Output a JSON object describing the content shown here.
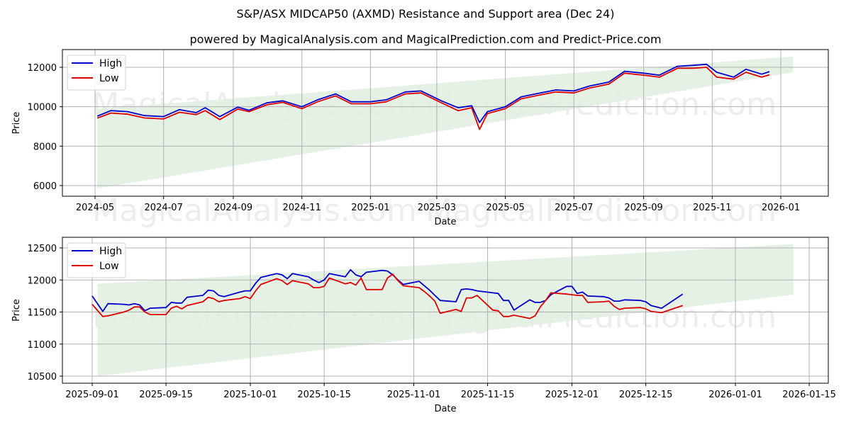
{
  "header": {
    "title": "S&P/ASX MIDCAP50 (AXMD) Resistance and Support area (Dec 24)",
    "subtitle": "powered by MagicalAnalysis.com and MagicalPrediction.com and Predict-Price.com"
  },
  "watermarks": [
    "MagicalAnalysis.com",
    "MagicalPrediction.com"
  ],
  "colors": {
    "high": "#0000cc",
    "low": "#dd0000",
    "band": "#e2efe2",
    "grid": "#b0b0b0"
  },
  "chart_data": [
    {
      "type": "line",
      "title": "S&P/ASX MIDCAP50 (AXMD) Resistance and Support area (Dec 24)",
      "xlabel": "Date",
      "ylabel": "Price",
      "xticks": [
        "2024-05",
        "2024-07",
        "2024-09",
        "2024-11",
        "2025-01",
        "2025-03",
        "2025-05",
        "2025-07",
        "2025-09",
        "2025-11",
        "2026-01"
      ],
      "yticks": [
        6000,
        8000,
        10000,
        12000
      ],
      "ylim": [
        5450,
        12900
      ],
      "grid": true,
      "legend": {
        "position": "upper left",
        "entries": [
          "High",
          "Low"
        ]
      },
      "x": [
        "2024-05-03",
        "2024-05-15",
        "2024-05-30",
        "2024-06-14",
        "2024-07-01",
        "2024-07-15",
        "2024-07-30",
        "2024-08-07",
        "2024-08-20",
        "2024-09-05",
        "2024-09-15",
        "2024-10-01",
        "2024-10-15",
        "2024-11-01",
        "2024-11-15",
        "2024-12-01",
        "2024-12-15",
        "2025-01-01",
        "2025-01-15",
        "2025-02-01",
        "2025-02-15",
        "2025-03-05",
        "2025-03-20",
        "2025-04-01",
        "2025-04-08",
        "2025-04-15",
        "2025-05-01",
        "2025-05-15",
        "2025-06-01",
        "2025-06-15",
        "2025-07-01",
        "2025-07-15",
        "2025-08-01",
        "2025-08-15",
        "2025-09-01",
        "2025-09-15",
        "2025-10-01",
        "2025-10-15",
        "2025-10-27",
        "2025-11-05",
        "2025-11-20",
        "2025-12-01",
        "2025-12-15",
        "2025-12-22"
      ],
      "series": [
        {
          "name": "High",
          "values": [
            9520,
            9800,
            9750,
            9550,
            9500,
            9850,
            9700,
            9950,
            9500,
            9980,
            9820,
            10200,
            10300,
            10000,
            10350,
            10650,
            10250,
            10250,
            10350,
            10750,
            10800,
            10300,
            9950,
            10050,
            9200,
            9750,
            10000,
            10500,
            10700,
            10850,
            10800,
            11050,
            11250,
            11800,
            11700,
            11600,
            12050,
            12100,
            12150,
            11750,
            11500,
            11900,
            11650,
            11780
          ]
        },
        {
          "name": "Low",
          "values": [
            9420,
            9680,
            9620,
            9430,
            9380,
            9720,
            9600,
            9800,
            9350,
            9880,
            9750,
            10100,
            10220,
            9900,
            10250,
            10550,
            10150,
            10150,
            10250,
            10650,
            10700,
            10200,
            9800,
            9950,
            8850,
            9650,
            9900,
            10400,
            10600,
            10750,
            10700,
            10950,
            11150,
            11700,
            11600,
            11500,
            11950,
            11950,
            12000,
            11500,
            11400,
            11750,
            11500,
            11620
          ]
        }
      ],
      "band": {
        "x_start": "2024-05-03",
        "x_end": "2026-01-12",
        "upper_start": 9900,
        "upper_end": 12550,
        "lower_start": 5850,
        "lower_end": 11750
      }
    },
    {
      "type": "line",
      "xlabel": "Date",
      "ylabel": "Price",
      "xticks": [
        "2025-09-01",
        "2025-09-15",
        "2025-10-01",
        "2025-10-15",
        "2025-11-01",
        "2025-11-15",
        "2025-12-01",
        "2025-12-15",
        "2026-01-01",
        "2026-01-15"
      ],
      "yticks": [
        10500,
        11000,
        11500,
        12000,
        12500
      ],
      "ylim": [
        10375,
        12665
      ],
      "grid": true,
      "legend": {
        "position": "upper left",
        "entries": [
          "High",
          "Low"
        ]
      },
      "x": [
        "2025-09-01",
        "2025-09-03",
        "2025-09-04",
        "2025-09-07",
        "2025-09-08",
        "2025-09-09",
        "2025-09-10",
        "2025-09-11",
        "2025-09-12",
        "2025-09-15",
        "2025-09-16",
        "2025-09-17",
        "2025-09-18",
        "2025-09-19",
        "2025-09-22",
        "2025-09-23",
        "2025-09-24",
        "2025-09-25",
        "2025-09-26",
        "2025-09-29",
        "2025-09-30",
        "2025-10-01",
        "2025-10-02",
        "2025-10-03",
        "2025-10-06",
        "2025-10-07",
        "2025-10-08",
        "2025-10-09",
        "2025-10-12",
        "2025-10-13",
        "2025-10-14",
        "2025-10-15",
        "2025-10-16",
        "2025-10-19",
        "2025-10-20",
        "2025-10-21",
        "2025-10-22",
        "2025-10-23",
        "2025-10-26",
        "2025-10-27",
        "2025-10-28",
        "2025-10-29",
        "2025-10-30",
        "2025-11-02",
        "2025-11-03",
        "2025-11-04",
        "2025-11-05",
        "2025-11-06",
        "2025-11-09",
        "2025-11-10",
        "2025-11-11",
        "2025-11-12",
        "2025-11-13",
        "2025-11-16",
        "2025-11-17",
        "2025-11-18",
        "2025-11-19",
        "2025-11-20",
        "2025-11-23",
        "2025-11-24",
        "2025-11-25",
        "2025-11-26",
        "2025-11-27",
        "2025-11-30",
        "2025-12-01",
        "2025-12-02",
        "2025-12-03",
        "2025-12-04",
        "2025-12-07",
        "2025-12-08",
        "2025-12-09",
        "2025-12-10",
        "2025-12-11",
        "2025-12-14",
        "2025-12-15",
        "2025-12-16",
        "2025-12-18",
        "2025-12-22"
      ],
      "series": [
        {
          "name": "High",
          "values": [
            11750,
            11510,
            11630,
            11620,
            11610,
            11630,
            11610,
            11520,
            11560,
            11570,
            11650,
            11640,
            11640,
            11730,
            11760,
            11840,
            11830,
            11760,
            11740,
            11810,
            11830,
            11830,
            11950,
            12040,
            12100,
            12080,
            12020,
            12100,
            12050,
            12000,
            11960,
            12000,
            12100,
            12050,
            12160,
            12080,
            12050,
            12120,
            12150,
            12140,
            12080,
            12000,
            11930,
            11980,
            11910,
            11840,
            11760,
            11680,
            11660,
            11850,
            11860,
            11850,
            11830,
            11800,
            11790,
            11680,
            11680,
            11530,
            11690,
            11650,
            11650,
            11680,
            11770,
            11900,
            11900,
            11790,
            11810,
            11750,
            11740,
            11720,
            11670,
            11670,
            11690,
            11680,
            11660,
            11600,
            11560,
            11780
          ]
        },
        {
          "name": "Low",
          "values": [
            11620,
            11430,
            11440,
            11500,
            11530,
            11580,
            11580,
            11500,
            11460,
            11460,
            11560,
            11590,
            11550,
            11600,
            11660,
            11730,
            11710,
            11660,
            11680,
            11710,
            11740,
            11710,
            11830,
            11930,
            12020,
            11990,
            11930,
            11990,
            11940,
            11880,
            11880,
            11900,
            12030,
            11940,
            11960,
            11920,
            12030,
            11850,
            11850,
            12030,
            12090,
            11990,
            11910,
            11880,
            11820,
            11750,
            11670,
            11480,
            11540,
            11510,
            11720,
            11720,
            11760,
            11530,
            11520,
            11430,
            11430,
            11450,
            11400,
            11440,
            11580,
            11680,
            11800,
            11780,
            11770,
            11760,
            11760,
            11650,
            11660,
            11670,
            11590,
            11540,
            11560,
            11570,
            11550,
            11510,
            11490,
            11600
          ]
        }
      ],
      "band": {
        "x_start": "2025-09-02",
        "x_end": "2026-01-12",
        "upper_start": 11940,
        "upper_end": 12560,
        "lower_start": 10500,
        "lower_end": 11770
      }
    }
  ]
}
